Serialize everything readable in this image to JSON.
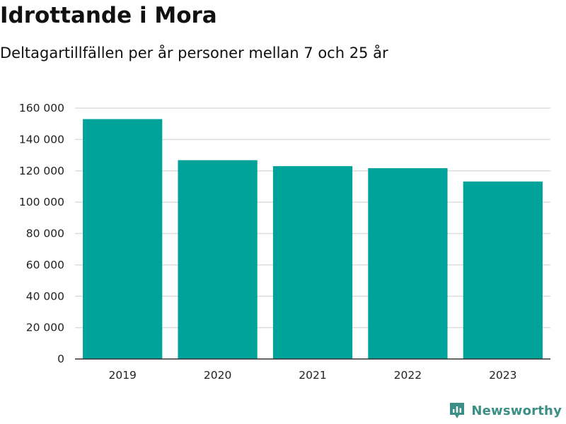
{
  "title": "Idrottande i Mora",
  "subtitle": "Deltagartillfällen per år personer mellan 7 och 25 år",
  "brand": {
    "name": "Newsworthy",
    "icon": "newsworthy-logo-icon",
    "color": "#3b8f86"
  },
  "colors": {
    "bar": "#00a39a",
    "grid": "#dddddd",
    "axis": "#333333"
  },
  "chart_data": {
    "type": "bar",
    "title": "Idrottande i Mora",
    "subtitle": "Deltagartillfällen per år personer mellan 7 och 25 år",
    "xlabel": "",
    "ylabel": "",
    "categories": [
      "2019",
      "2020",
      "2021",
      "2022",
      "2023"
    ],
    "values": [
      153000,
      126800,
      123000,
      121700,
      113200
    ],
    "ylim": [
      0,
      160000
    ],
    "yticks": [
      0,
      20000,
      40000,
      60000,
      80000,
      100000,
      120000,
      140000,
      160000
    ],
    "ytick_labels": [
      "0",
      "20 000",
      "40 000",
      "60 000",
      "80 000",
      "100 000",
      "120 000",
      "140 000",
      "160 000"
    ],
    "grid": true,
    "legend": "none"
  }
}
